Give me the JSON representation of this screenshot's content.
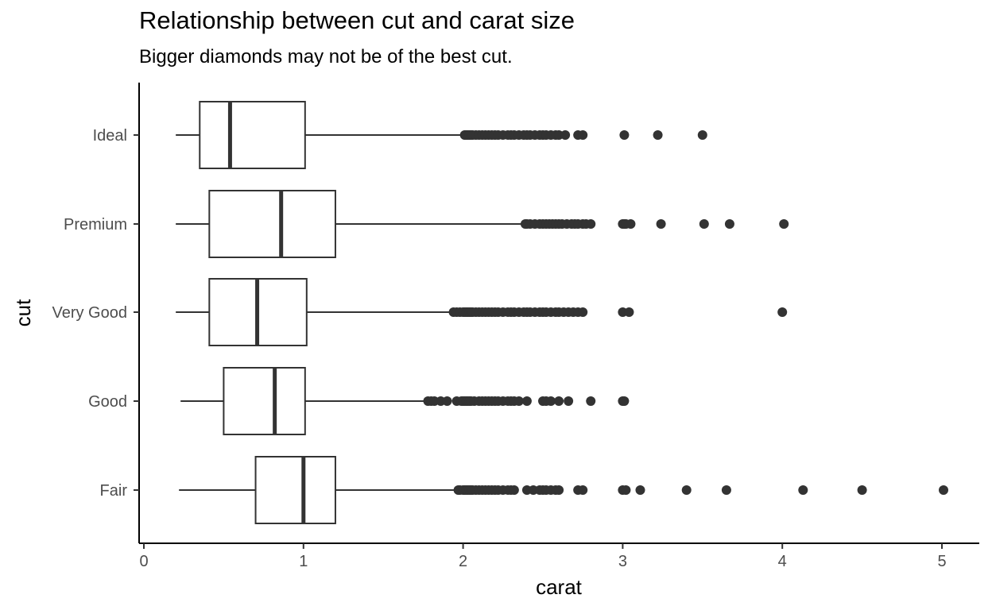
{
  "chart_data": {
    "type": "boxplot",
    "orientation": "horizontal",
    "title": "Relationship between cut and carat size",
    "subtitle": "Bigger diamonds may not be of the best cut.",
    "xlabel": "carat",
    "ylabel": "cut",
    "xlim": [
      0,
      5.2
    ],
    "x_ticks": [
      0,
      1,
      2,
      3,
      4,
      5
    ],
    "grid": false,
    "categories": [
      "Ideal",
      "Premium",
      "Very Good",
      "Good",
      "Fair"
    ],
    "boxes": [
      {
        "category": "Ideal",
        "whisker_low": 0.2,
        "q1": 0.35,
        "median": 0.54,
        "q3": 1.01,
        "whisker_high": 2.0,
        "outliers": [
          2.01,
          2.02,
          2.03,
          2.04,
          2.05,
          2.06,
          2.08,
          2.1,
          2.12,
          2.14,
          2.16,
          2.18,
          2.2,
          2.22,
          2.25,
          2.28,
          2.3,
          2.32,
          2.35,
          2.38,
          2.4,
          2.42,
          2.45,
          2.48,
          2.5,
          2.52,
          2.55,
          2.58,
          2.6,
          2.64,
          2.72,
          2.75,
          3.01,
          3.22,
          3.5
        ]
      },
      {
        "category": "Premium",
        "whisker_low": 0.2,
        "q1": 0.41,
        "median": 0.86,
        "q3": 1.2,
        "whisker_high": 2.38,
        "outliers": [
          2.39,
          2.4,
          2.42,
          2.45,
          2.48,
          2.5,
          2.52,
          2.54,
          2.56,
          2.58,
          2.6,
          2.62,
          2.65,
          2.68,
          2.7,
          2.72,
          2.75,
          2.77,
          2.8,
          3.0,
          3.01,
          3.02,
          3.05,
          3.24,
          3.51,
          3.67,
          4.01
        ]
      },
      {
        "category": "Very Good",
        "whisker_low": 0.2,
        "q1": 0.41,
        "median": 0.71,
        "q3": 1.02,
        "whisker_high": 1.93,
        "outliers": [
          1.94,
          1.96,
          1.98,
          2.0,
          2.01,
          2.02,
          2.03,
          2.04,
          2.05,
          2.06,
          2.08,
          2.1,
          2.12,
          2.14,
          2.16,
          2.18,
          2.2,
          2.22,
          2.25,
          2.28,
          2.3,
          2.32,
          2.35,
          2.38,
          2.4,
          2.42,
          2.45,
          2.48,
          2.5,
          2.52,
          2.55,
          2.58,
          2.6,
          2.63,
          2.66,
          2.69,
          2.72,
          2.75,
          3.0,
          3.04,
          4.0
        ]
      },
      {
        "category": "Good",
        "whisker_low": 0.23,
        "q1": 0.5,
        "median": 0.82,
        "q3": 1.01,
        "whisker_high": 1.77,
        "outliers": [
          1.78,
          1.8,
          1.82,
          1.86,
          1.9,
          1.96,
          1.99,
          2.0,
          2.01,
          2.02,
          2.03,
          2.04,
          2.05,
          2.07,
          2.1,
          2.12,
          2.14,
          2.16,
          2.18,
          2.2,
          2.22,
          2.25,
          2.28,
          2.3,
          2.32,
          2.35,
          2.4,
          2.5,
          2.52,
          2.55,
          2.6,
          2.66,
          2.8,
          3.0,
          3.01
        ]
      },
      {
        "category": "Fair",
        "whisker_low": 0.22,
        "q1": 0.7,
        "median": 1.0,
        "q3": 1.2,
        "whisker_high": 1.96,
        "outliers": [
          1.97,
          1.98,
          2.0,
          2.01,
          2.02,
          2.03,
          2.04,
          2.05,
          2.06,
          2.08,
          2.1,
          2.12,
          2.14,
          2.16,
          2.18,
          2.2,
          2.22,
          2.25,
          2.28,
          2.3,
          2.32,
          2.4,
          2.44,
          2.48,
          2.5,
          2.52,
          2.55,
          2.58,
          2.6,
          2.72,
          2.75,
          3.0,
          3.02,
          3.11,
          3.4,
          3.65,
          4.13,
          4.5,
          5.01
        ]
      }
    ],
    "colors": {
      "box_line": "#333333",
      "box_fill": "#ffffff",
      "outlier": "#333333",
      "axis": "#000000",
      "tick_label": "#4d4d4d"
    }
  }
}
